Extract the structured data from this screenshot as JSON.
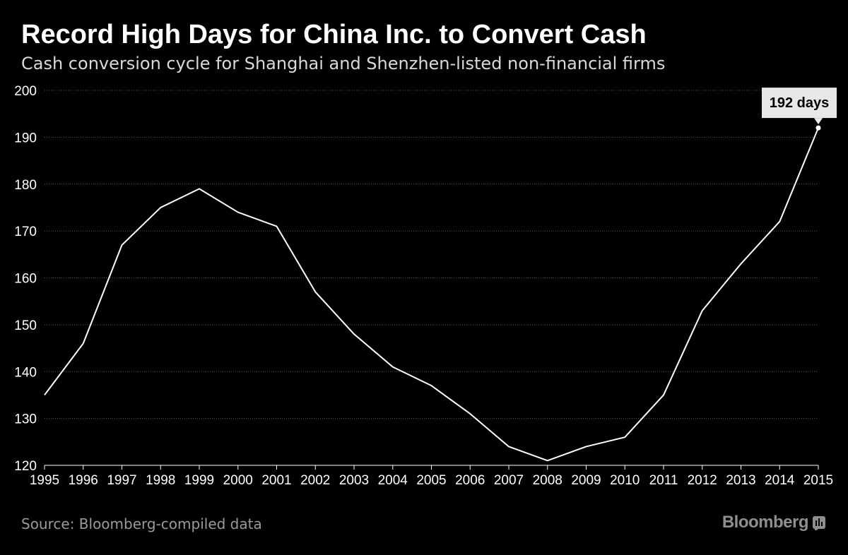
{
  "title": "Record High Days for China Inc. to Convert Cash",
  "subtitle": "Cash conversion cycle for Shanghai and Shenzhen-listed non-financial firms",
  "source": "Source: Bloomberg-compiled data",
  "brand": {
    "name": "Bloomberg",
    "icon": "bloomberg-logo-icon"
  },
  "colors": {
    "background": "#000000",
    "line": "#ffffff",
    "grid": "#555555",
    "label_bg": "#e8e8e8",
    "label_text": "#000000"
  },
  "chart_data": {
    "type": "line",
    "x": [
      "1995",
      "1996",
      "1997",
      "1998",
      "1999",
      "2000",
      "2001",
      "2002",
      "2003",
      "2004",
      "2005",
      "2006",
      "2007",
      "2008",
      "2009",
      "2010",
      "2011",
      "2012",
      "2013",
      "2014",
      "2015"
    ],
    "series": [
      {
        "values": [
          135,
          146,
          167,
          175,
          179,
          174,
          171,
          157,
          148,
          141,
          137,
          131,
          124,
          121,
          124,
          126,
          135,
          153,
          163,
          172,
          192
        ]
      }
    ],
    "ylim": [
      120,
      200
    ],
    "yticks": [
      120,
      130,
      140,
      150,
      160,
      170,
      180,
      190,
      200
    ],
    "grid": "horizontal dotted",
    "xlabel": "",
    "ylabel": "",
    "annotation": {
      "x": "2015",
      "y": 192,
      "text": "192 days"
    }
  }
}
